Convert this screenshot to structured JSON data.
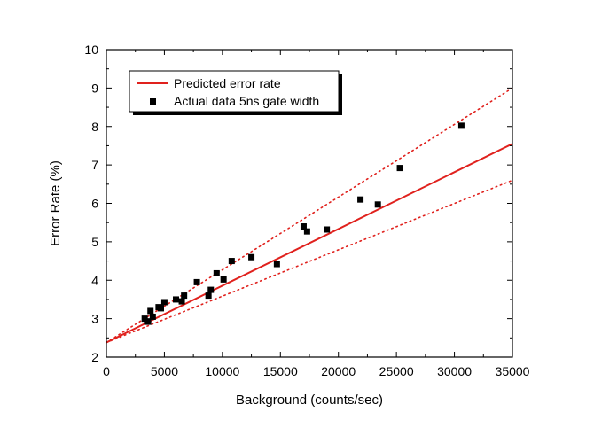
{
  "chart_data": {
    "type": "scatter",
    "xlabel": "Background (counts/sec)",
    "ylabel": "Error Rate (%)",
    "xlim": [
      0,
      35000
    ],
    "ylim": [
      2,
      10
    ],
    "xticks": [
      0,
      5000,
      10000,
      15000,
      20000,
      25000,
      30000,
      35000
    ],
    "yticks": [
      2,
      3,
      4,
      5,
      6,
      7,
      8,
      9,
      10
    ],
    "grid": false,
    "legend_position": "top-left",
    "legend": [
      "Predicted error rate",
      "Actual data 5ns gate width"
    ],
    "series": [
      {
        "name": "Predicted error rate",
        "kind": "line",
        "style": "solid",
        "color": "#e0211d",
        "x": [
          0,
          35000
        ],
        "y": [
          2.38,
          7.55
        ]
      },
      {
        "kind": "line",
        "style": "dotted",
        "color": "#e0211d",
        "x": [
          0,
          35000
        ],
        "y": [
          2.38,
          9.0
        ]
      },
      {
        "kind": "line",
        "style": "dotted",
        "color": "#e0211d",
        "x": [
          0,
          35000
        ],
        "y": [
          2.38,
          6.6
        ]
      },
      {
        "name": "Actual data 5ns gate width",
        "kind": "scatter",
        "marker": "square",
        "color": "#000000",
        "x": [
          3300,
          3500,
          3600,
          3800,
          4000,
          4500,
          4700,
          5000,
          6000,
          6500,
          6700,
          7800,
          8800,
          9000,
          9500,
          10100,
          10800,
          12500,
          14700,
          17000,
          17300,
          19000,
          21900,
          23400,
          25300,
          30600
        ],
        "y": [
          3.0,
          2.93,
          2.92,
          3.2,
          3.05,
          3.3,
          3.27,
          3.43,
          3.5,
          3.45,
          3.6,
          3.95,
          3.6,
          3.75,
          4.18,
          4.02,
          4.5,
          4.6,
          4.42,
          5.4,
          5.27,
          5.32,
          6.1,
          5.97,
          6.92,
          8.02
        ]
      }
    ]
  }
}
